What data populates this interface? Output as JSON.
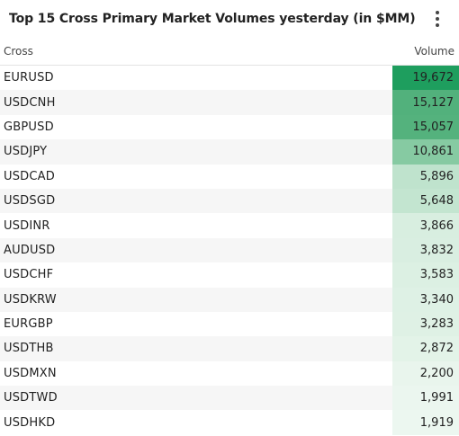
{
  "widget": {
    "title": "Top 15 Cross Primary Market Volumes yesterday (in $MM)",
    "menu_icon": "more-vertical-icon"
  },
  "table": {
    "columns": {
      "cross": "Cross",
      "volume": "Volume"
    },
    "rows": [
      {
        "cross": "EURUSD",
        "volume": "19,672",
        "color": "#1e9e5e"
      },
      {
        "cross": "USDCNH",
        "volume": "15,127",
        "color": "#52b17c"
      },
      {
        "cross": "GBPUSD",
        "volume": "15,057",
        "color": "#54b27d"
      },
      {
        "cross": "USDJPY",
        "volume": "10,861",
        "color": "#86caa2"
      },
      {
        "cross": "USDCAD",
        "volume": "5,896",
        "color": "#bfe3cd"
      },
      {
        "cross": "USDSGD",
        "volume": "5,648",
        "color": "#c3e5d0"
      },
      {
        "cross": "USDINR",
        "volume": "3,866",
        "color": "#d8eee0"
      },
      {
        "cross": "AUDUSD",
        "volume": "3,832",
        "color": "#d9eee1"
      },
      {
        "cross": "USDCHF",
        "volume": "3,583",
        "color": "#dcf0e3"
      },
      {
        "cross": "USDKRW",
        "volume": "3,340",
        "color": "#def1e5"
      },
      {
        "cross": "EURGBP",
        "volume": "3,283",
        "color": "#dff1e5"
      },
      {
        "cross": "USDTHB",
        "volume": "2,872",
        "color": "#e3f3e8"
      },
      {
        "cross": "USDMXN",
        "volume": "2,200",
        "color": "#e9f5ed"
      },
      {
        "cross": "USDTWD",
        "volume": "1,991",
        "color": "#ebf6ef"
      },
      {
        "cross": "USDHKD",
        "volume": "1,919",
        "color": "#ecf7f0"
      }
    ]
  }
}
